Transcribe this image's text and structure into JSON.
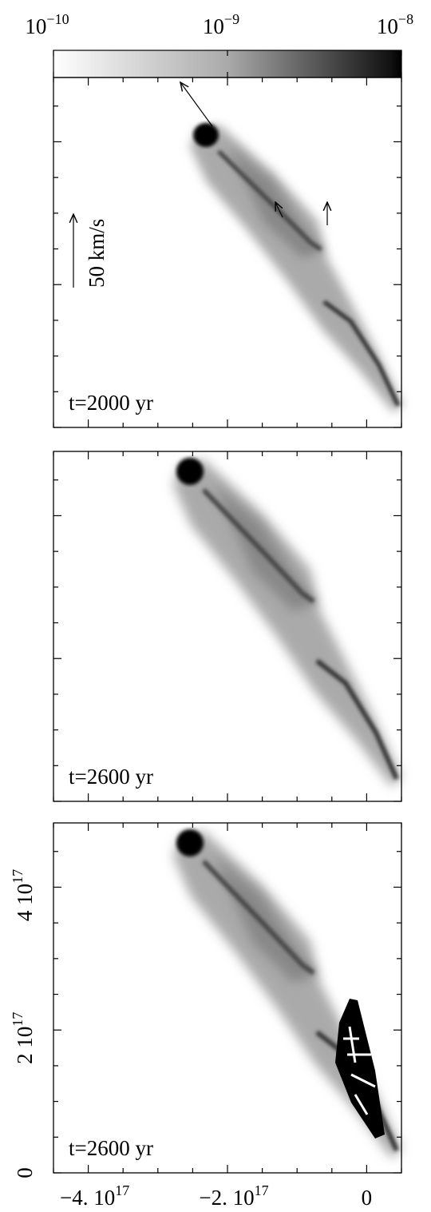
{
  "chart_data": {
    "type": "density-map",
    "colorbar": {
      "scale": "log",
      "lim": [
        1e-10,
        1e-08
      ],
      "ticks": [
        {
          "value": 1e-10,
          "label": "10",
          "exponent": "−10"
        },
        {
          "value": 1e-09,
          "label": "10",
          "exponent": "−9"
        },
        {
          "value": 1e-08,
          "label": "10",
          "exponent": "−8"
        }
      ]
    },
    "panels": [
      {
        "time_label": "t=2000 yr",
        "velocity_scale_label": "50 km/s"
      },
      {
        "time_label": "t=2600 yr"
      },
      {
        "time_label": "t=2600 yr"
      }
    ],
    "xlim": [
      -4.5e+17,
      5e+16
    ],
    "xticks": [
      {
        "value": -4e+17,
        "label": "−4. 10",
        "exponent": "17"
      },
      {
        "value": -2e+17,
        "label": "−2. 10",
        "exponent": "17"
      },
      0
    ],
    "xminorticks": [
      -4.5e+17,
      -3.5e+17,
      -3e+17,
      -2.5e+17,
      -1.5e+17,
      -1e+17,
      -5e+16,
      5e+16
    ],
    "ylim": [
      0,
      4.9e+17
    ],
    "yticks": [
      0,
      {
        "value": 2e+17,
        "label": "2 10",
        "exponent": "17"
      },
      {
        "value": 4e+17,
        "label": "4 10",
        "exponent": "17"
      }
    ],
    "yminorticks": [
      5e+16,
      1e+17,
      1.5e+17,
      2.5e+17,
      3e+17,
      3.5e+17,
      4.5e+17
    ]
  }
}
